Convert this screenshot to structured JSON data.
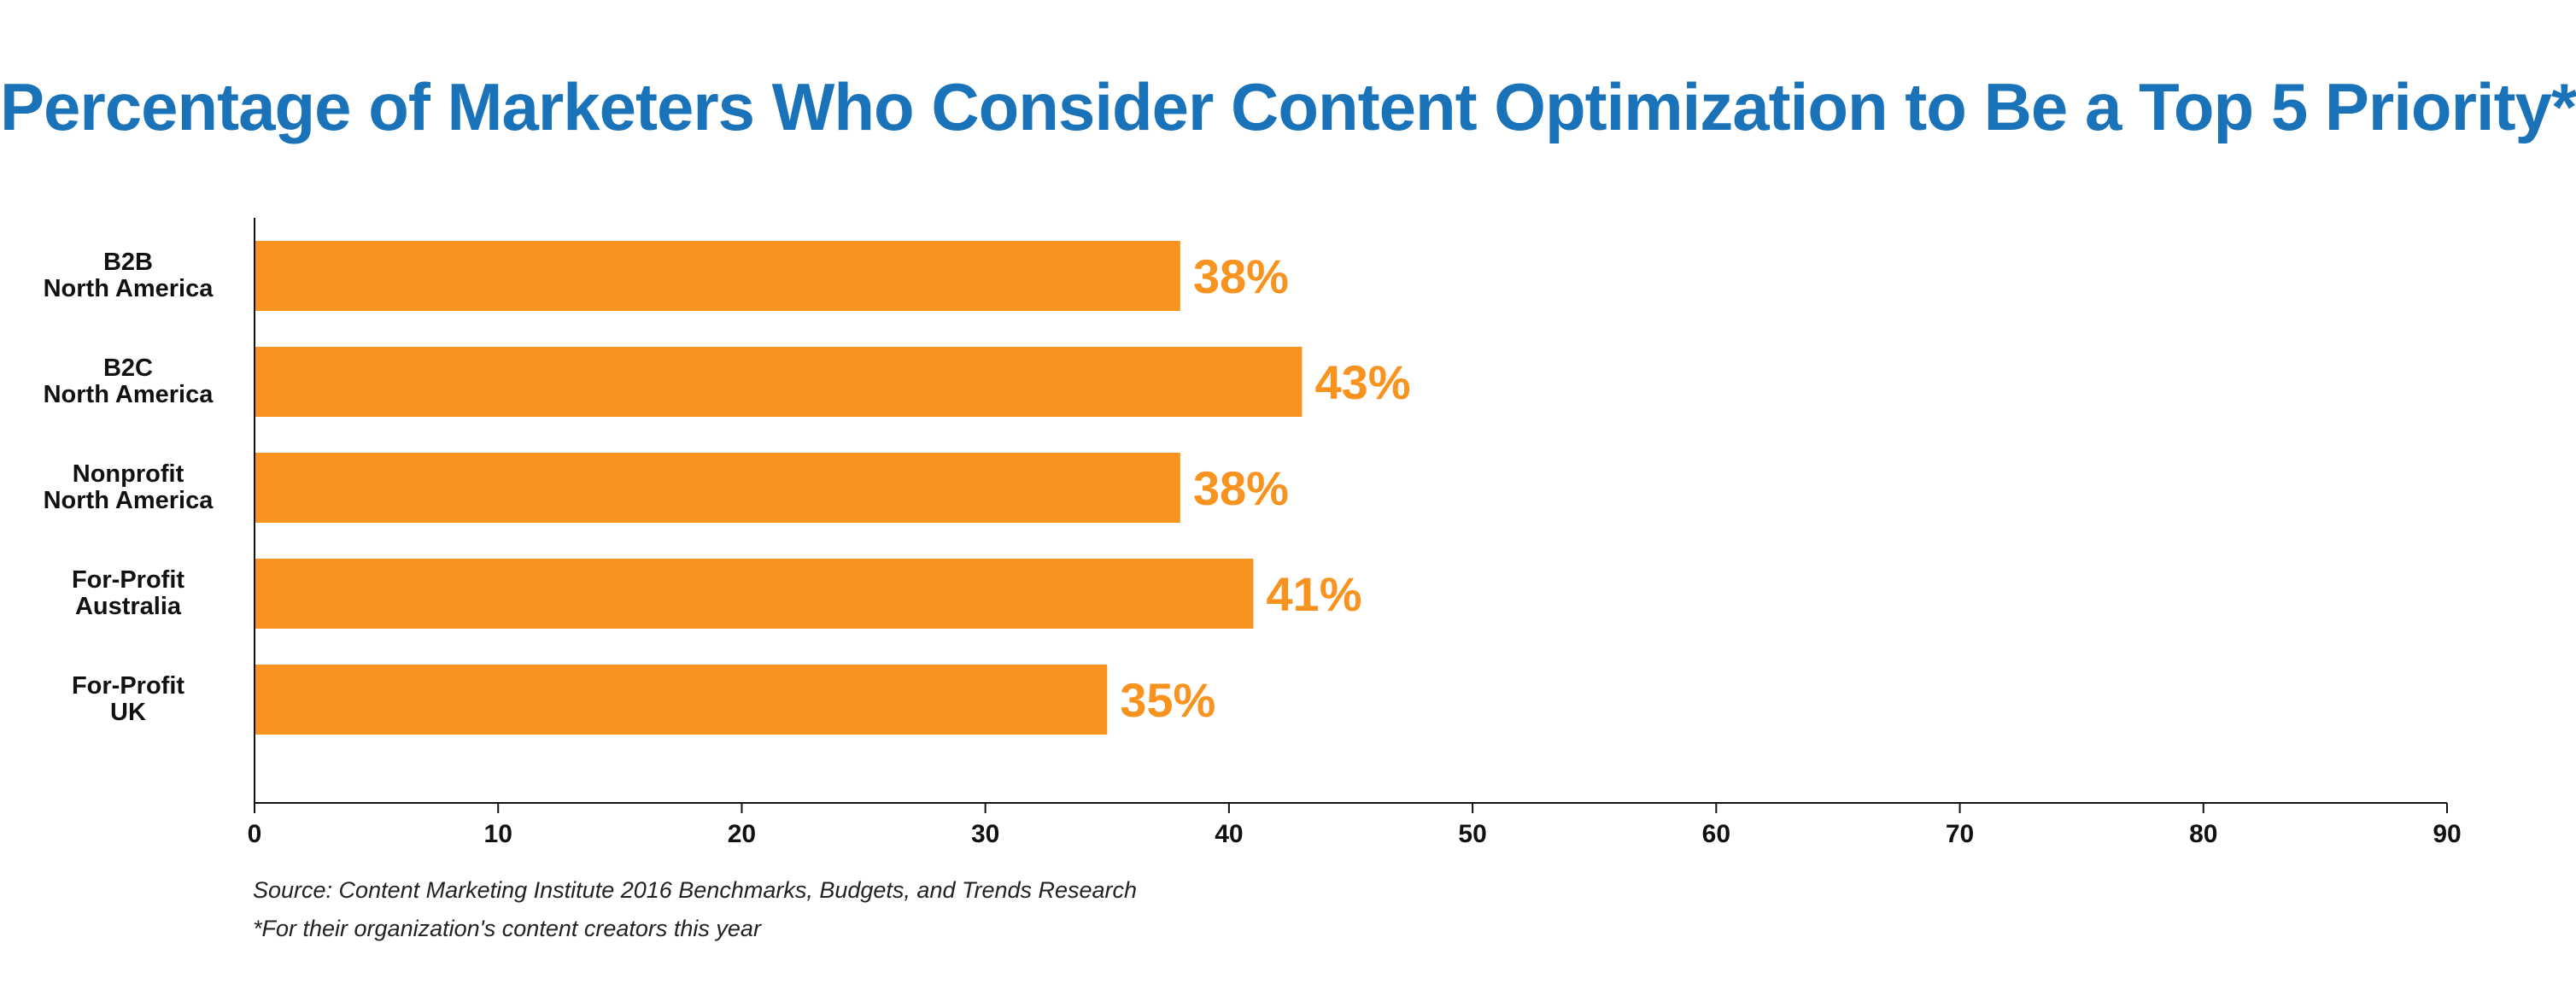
{
  "chart_data": {
    "type": "bar",
    "orientation": "horizontal",
    "title": "Percentage of Marketers Who Consider Content Optimization to Be a Top 5 Priority*",
    "categories": [
      [
        "B2B",
        "North America"
      ],
      [
        "B2C",
        "North America"
      ],
      [
        "Nonprofit",
        "North America"
      ],
      [
        "For-Profit",
        "Australia"
      ],
      [
        "For-Profit",
        "UK"
      ]
    ],
    "values": [
      38,
      43,
      38,
      41,
      35
    ],
    "data_labels": [
      "38%",
      "43%",
      "38%",
      "41%",
      "35%"
    ],
    "xlim": [
      0,
      90
    ],
    "xticks": [
      0,
      10,
      20,
      30,
      40,
      50,
      60,
      70,
      80,
      90
    ],
    "xlabel": "",
    "ylabel": "",
    "grid": false,
    "legend": "none"
  },
  "colors": {
    "title": "#1a73b9",
    "bar": "#f7931e",
    "data_label": "#f7931e",
    "axis": "#111111"
  },
  "notes": {
    "source": "Source: Content Marketing Institute 2016 Benchmarks, Budgets, and Trends Research",
    "footnote": "*For their organization's content creators this year"
  }
}
